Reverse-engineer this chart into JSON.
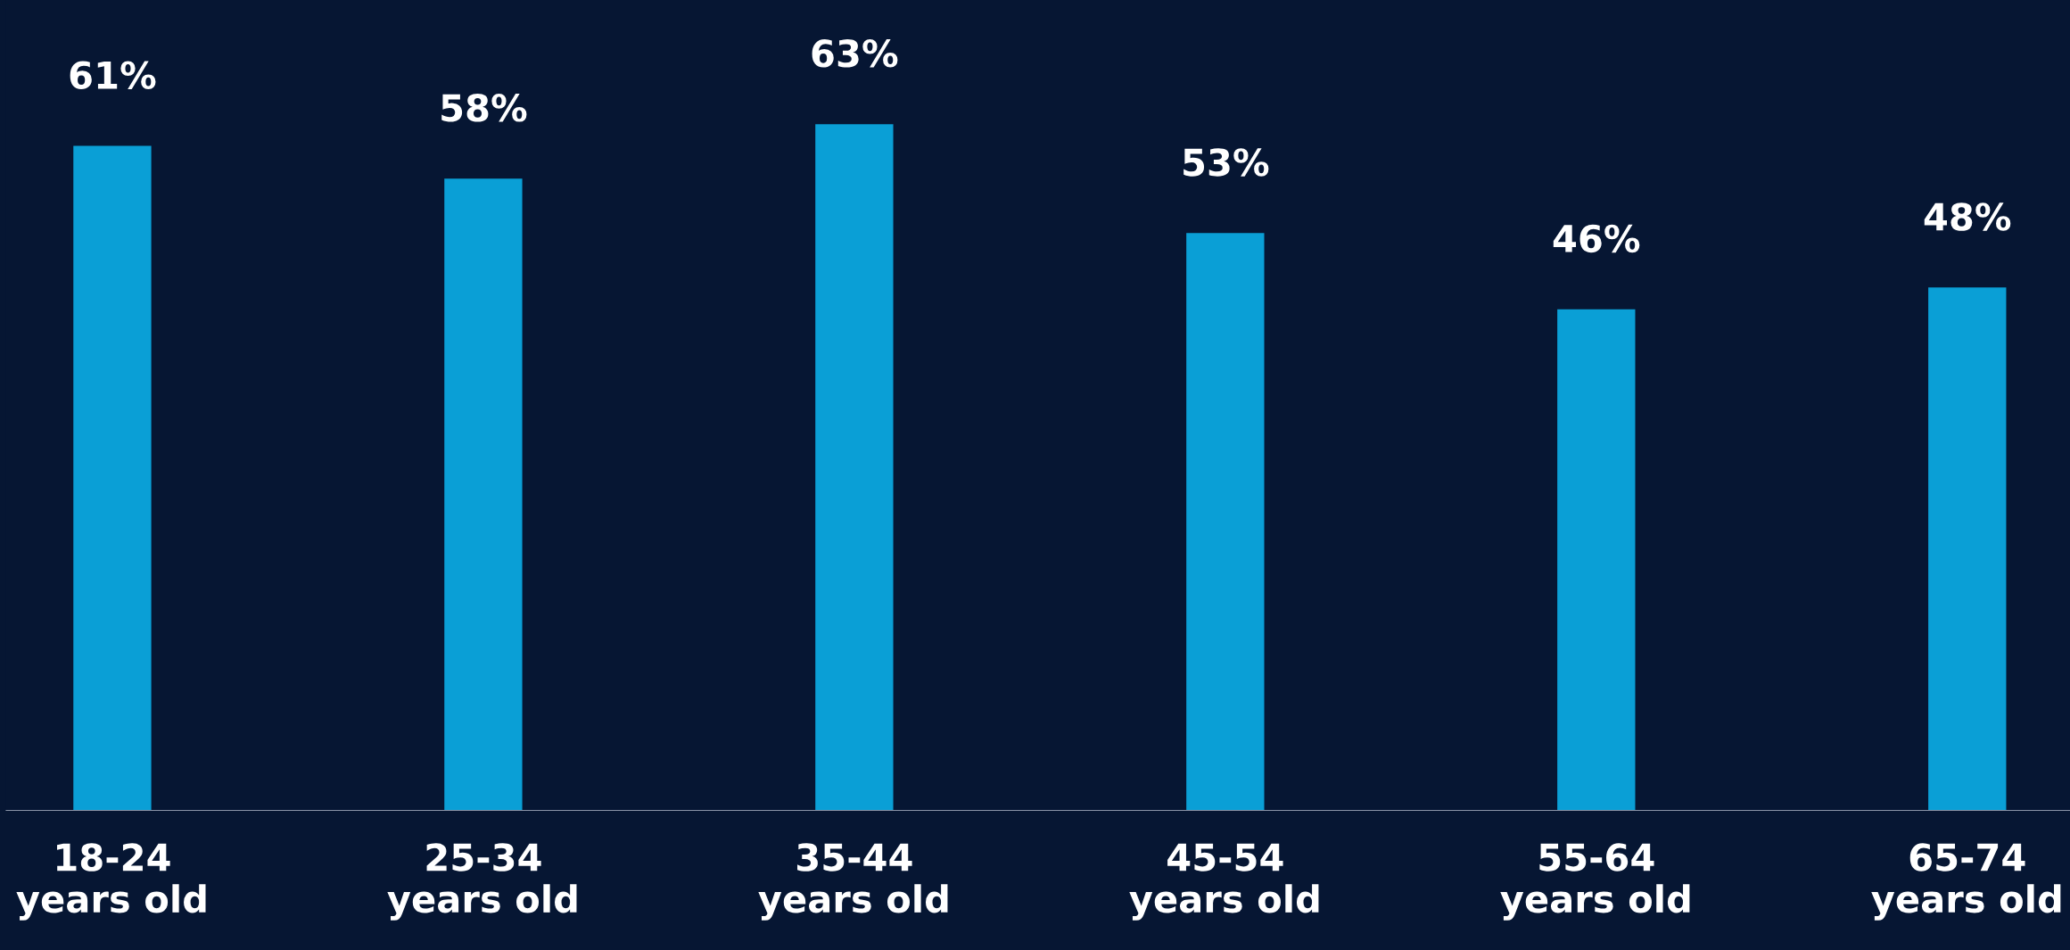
{
  "chart_data": {
    "type": "bar",
    "categories": [
      "18-24\nyears old",
      "25-34\nyears old",
      "35-44\nyears old",
      "45-54\nyears old",
      "55-64\nyears old",
      "65-74\nyears old"
    ],
    "values": [
      61,
      58,
      63,
      53,
      46,
      48
    ],
    "color": "#0a9fd6",
    "data_labels": true,
    "value_labels": [
      "61%",
      "58%",
      "63%",
      "53%",
      "46%",
      "48%"
    ],
    "ylim": [
      0,
      74.4
    ],
    "grid": false,
    "legend": false
  }
}
